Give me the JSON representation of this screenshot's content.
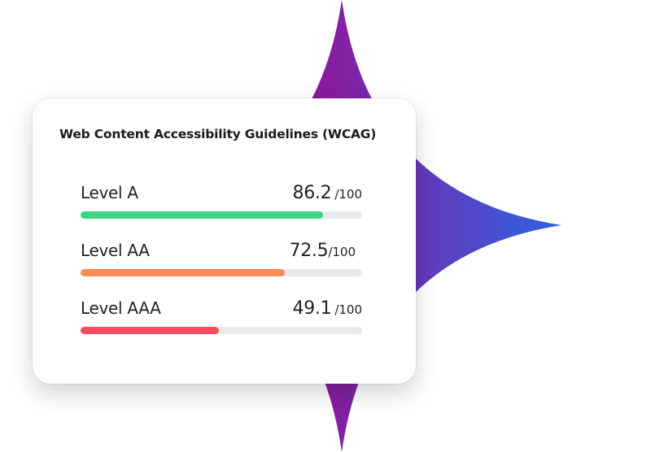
{
  "card": {
    "title": "Web Content Accessibility Guidelines (WCAG)",
    "levels": [
      {
        "label": "Level A",
        "score": "86.2",
        "max": "/100",
        "value": 86.2,
        "color": "#3fd483"
      },
      {
        "label": "Level AA",
        "score": "72.5",
        "max": "/100",
        "value": 72.5,
        "color": "#ff8c52"
      },
      {
        "label": "Level AAA",
        "score": "49.1",
        "max": "/100",
        "value": 49.1,
        "color": "#ff4b60"
      }
    ]
  },
  "decoration": {
    "gradient_start": "#8c1a9c",
    "gradient_end": "#2d63e4"
  }
}
